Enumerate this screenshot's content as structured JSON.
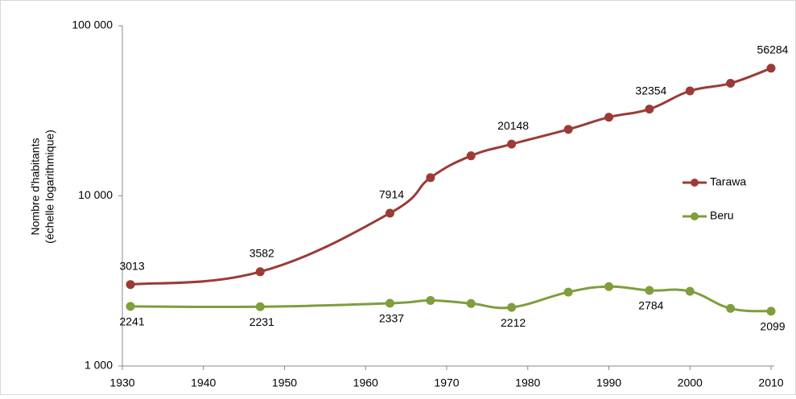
{
  "chart_data": {
    "type": "line",
    "ylabel": [
      "Nombre d'habitants",
      "(échelle logarithmique)"
    ],
    "x": [
      1931,
      1947,
      1963,
      1968,
      1973,
      1978,
      1985,
      1990,
      1995,
      2000,
      2005,
      2010
    ],
    "series": [
      {
        "name": "Tarawa",
        "color": "#9b3b36",
        "values": [
          3013,
          3582,
          7914,
          12800,
          17200,
          20148,
          24600,
          29000,
          32354,
          41400,
          45900,
          56284
        ],
        "value_labels": [
          "3013",
          "3582",
          "7914",
          null,
          null,
          "20148",
          null,
          null,
          "32354",
          null,
          null,
          "56284"
        ]
      },
      {
        "name": "Beru",
        "color": "#7f9e3c",
        "values": [
          2241,
          2231,
          2337,
          2430,
          2330,
          2212,
          2720,
          2930,
          2784,
          2750,
          2180,
          2099
        ],
        "value_labels": [
          "2241",
          "2231",
          "2337",
          null,
          null,
          "2212",
          null,
          null,
          "2784",
          null,
          null,
          "2099"
        ]
      }
    ],
    "xlim": [
      1930,
      2010
    ],
    "xticks": [
      1930,
      1940,
      1950,
      1960,
      1970,
      1980,
      1990,
      2000,
      2010
    ],
    "ylim": [
      1000,
      100000
    ],
    "log_y": true,
    "yticks": [
      {
        "value": 1000,
        "label": "1 000"
      },
      {
        "value": 10000,
        "label": "10 000"
      },
      {
        "value": 100000,
        "label": "100 000"
      }
    ],
    "legend": "right"
  }
}
